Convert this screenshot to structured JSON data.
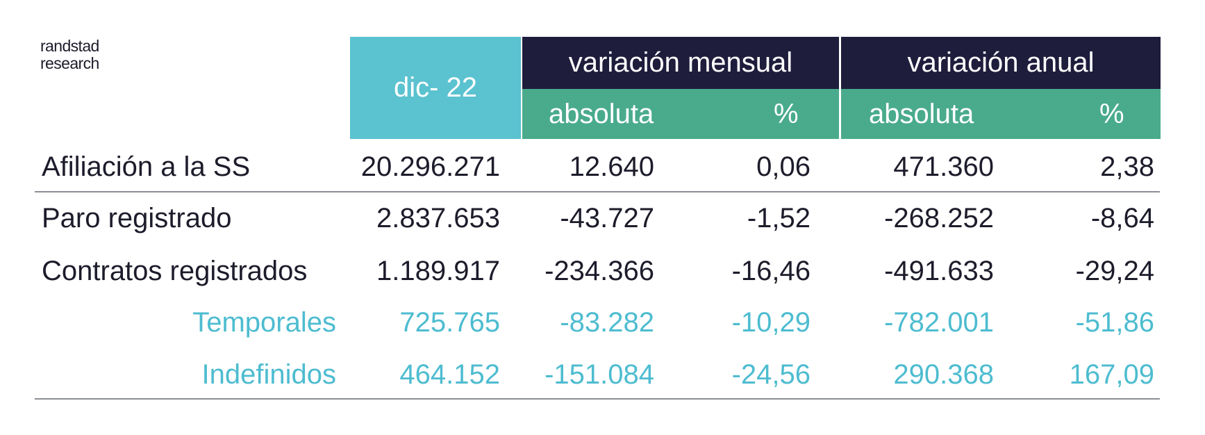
{
  "brand": {
    "line1": "randstad",
    "line2": "research"
  },
  "colors": {
    "dark_header": "#1f1d3c",
    "green_header": "#4aab8c",
    "teal_header": "#5bc2d0",
    "text": "#1c1c2b",
    "subrow_text": "#4dbcd0"
  },
  "chart_data": {
    "type": "table",
    "header": {
      "period": "dic- 22",
      "groups": [
        "variación mensual",
        "variación anual"
      ],
      "subheaders": [
        "absoluta",
        "%",
        "absoluta",
        "%"
      ]
    },
    "rows": [
      {
        "label": "Afiliación a la SS",
        "values": [
          "20.296.271",
          "12.640",
          "0,06",
          "471.360",
          "2,38"
        ]
      },
      {
        "label": "Paro registrado",
        "values": [
          "2.837.653",
          "-43.727",
          "-1,52",
          "-268.252",
          "-8,64"
        ]
      },
      {
        "label": "Contratos registrados",
        "values": [
          "1.189.917",
          "-234.366",
          "-16,46",
          "-491.633",
          "-29,24"
        ]
      },
      {
        "label": "Temporales",
        "values": [
          "725.765",
          "-83.282",
          "-10,29",
          "-782.001",
          "-51,86"
        ]
      },
      {
        "label": "Indefinidos",
        "values": [
          "464.152",
          "-151.084",
          "-24,56",
          "290.368",
          "167,09"
        ]
      }
    ]
  }
}
